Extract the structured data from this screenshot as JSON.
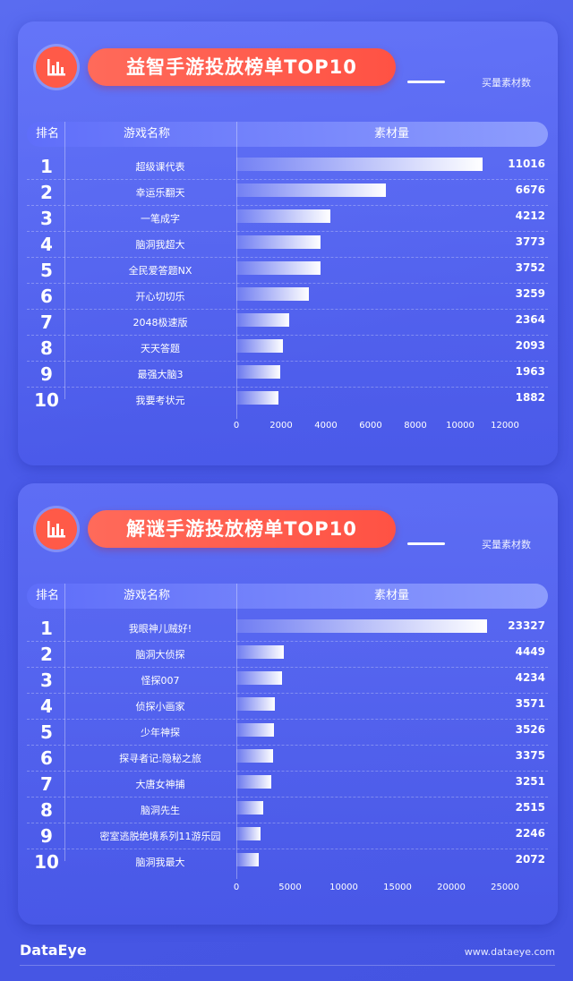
{
  "charts": [
    {
      "title": "益智手游投放榜单TOP10",
      "legend": "买量素材数",
      "headers": {
        "rank": "排名",
        "name": "游戏名称",
        "value": "素材量"
      },
      "axis_ticks": [
        "0",
        "2000",
        "4000",
        "6000",
        "8000",
        "10000",
        "12000"
      ],
      "rows": [
        {
          "rank": "1",
          "name": "超级课代表",
          "value": "11016"
        },
        {
          "rank": "2",
          "name": "幸运乐翻天",
          "value": "6676"
        },
        {
          "rank": "3",
          "name": "一笔成字",
          "value": "4212"
        },
        {
          "rank": "4",
          "name": "脑洞我超大",
          "value": "3773"
        },
        {
          "rank": "5",
          "name": "全民爱答题NX",
          "value": "3752"
        },
        {
          "rank": "6",
          "name": "开心切切乐",
          "value": "3259"
        },
        {
          "rank": "7",
          "name": "2048极速版",
          "value": "2364"
        },
        {
          "rank": "8",
          "name": "天天答题",
          "value": "2093"
        },
        {
          "rank": "9",
          "name": "最强大脑3",
          "value": "1963"
        },
        {
          "rank": "10",
          "name": "我要考状元",
          "value": "1882"
        }
      ]
    },
    {
      "title": "解谜手游投放榜单TOP10",
      "legend": "买量素材数",
      "headers": {
        "rank": "排名",
        "name": "游戏名称",
        "value": "素材量"
      },
      "axis_ticks": [
        "0",
        "5000",
        "10000",
        "15000",
        "20000",
        "25000"
      ],
      "rows": [
        {
          "rank": "1",
          "name": "我眼神儿贼好!",
          "value": "23327"
        },
        {
          "rank": "2",
          "name": "脑洞大侦探",
          "value": "4449"
        },
        {
          "rank": "3",
          "name": "怪探007",
          "value": "4234"
        },
        {
          "rank": "4",
          "name": "侦探小画家",
          "value": "3571"
        },
        {
          "rank": "5",
          "name": "少年神探",
          "value": "3526"
        },
        {
          "rank": "6",
          "name": "探寻者记:隐秘之旅",
          "value": "3375"
        },
        {
          "rank": "7",
          "name": "大唐女神捕",
          "value": "3251"
        },
        {
          "rank": "8",
          "name": "脑洞先生",
          "value": "2515"
        },
        {
          "rank": "9",
          "name": "密室逃脱绝境系列11游乐园",
          "value": "2246"
        },
        {
          "rank": "10",
          "name": "脑洞我最大",
          "value": "2072"
        }
      ]
    }
  ],
  "chart_data": [
    {
      "type": "bar",
      "title": "益智手游投放榜单TOP10",
      "orientation": "horizontal",
      "categories": [
        "超级课代表",
        "幸运乐翻天",
        "一笔成字",
        "脑洞我超大",
        "全民爱答题NX",
        "开心切切乐",
        "2048极速版",
        "天天答题",
        "最强大脑3",
        "我要考状元"
      ],
      "series": [
        {
          "name": "买量素材数",
          "values": [
            11016,
            6676,
            4212,
            3773,
            3752,
            3259,
            2364,
            2093,
            1963,
            1882
          ]
        }
      ],
      "xlim": [
        0,
        12000
      ],
      "grid": false,
      "legend": "top-right"
    },
    {
      "type": "bar",
      "title": "解谜手游投放榜单TOP10",
      "orientation": "horizontal",
      "categories": [
        "我眼神儿贼好!",
        "脑洞大侦探",
        "怪探007",
        "侦探小画家",
        "少年神探",
        "探寻者记:隐秘之旅",
        "大唐女神捕",
        "脑洞先生",
        "密室逃脱绝境系列11游乐园",
        "脑洞我最大"
      ],
      "series": [
        {
          "name": "买量素材数",
          "values": [
            23327,
            4449,
            4234,
            3571,
            3526,
            3375,
            3251,
            2515,
            2246,
            2072
          ]
        }
      ],
      "xlim": [
        0,
        25000
      ],
      "grid": false,
      "legend": "top-right"
    }
  ],
  "footer": {
    "logo": "DataEye",
    "url": "www.dataeye.com"
  }
}
